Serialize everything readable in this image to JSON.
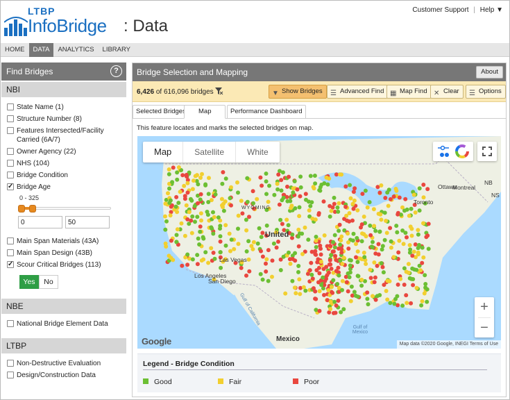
{
  "header": {
    "logo_small": "LTBP",
    "logo_main": "InfoBridge",
    "logo_sub": ": Data",
    "support": "Customer Support",
    "help": "Help ▼"
  },
  "nav": [
    {
      "label": "HOME",
      "active": false
    },
    {
      "label": "DATA",
      "active": true
    },
    {
      "label": "ANALYTICS",
      "active": false
    },
    {
      "label": "LIBRARY",
      "active": false
    }
  ],
  "sidebar": {
    "title": "Find Bridges",
    "sections": {
      "nbi": "NBI",
      "nbe": "NBE",
      "ltbp": "LTBP"
    },
    "nbi_items": [
      {
        "label": "State Name (1)",
        "checked": false
      },
      {
        "label": "Structure Number (8)",
        "checked": false
      },
      {
        "label": "Features Intersected/Facility Carried (6A/7)",
        "checked": false
      },
      {
        "label": "Owner Agency (22)",
        "checked": false
      },
      {
        "label": "NHS (104)",
        "checked": false
      },
      {
        "label": "Bridge Condition",
        "checked": false
      },
      {
        "label": "Bridge Age",
        "checked": true
      }
    ],
    "age_range_label": "0 - 325",
    "age_min": "0",
    "age_max": "50",
    "age_slider_fraction": 0.154,
    "nbi_items2": [
      {
        "label": "Main Span Materials (43A)",
        "checked": false
      },
      {
        "label": "Main Span Design (43B)",
        "checked": false
      },
      {
        "label": "Scour Critical Bridges (113)",
        "checked": true
      }
    ],
    "yes": "Yes",
    "no": "No",
    "nbe_items": [
      {
        "label": "National Bridge Element Data",
        "checked": false
      }
    ],
    "ltbp_items": [
      {
        "label": "Non-Destructive Evaluation",
        "checked": false
      },
      {
        "label": "Design/Construction Data",
        "checked": false
      }
    ]
  },
  "main": {
    "title": "Bridge Selection and Mapping",
    "about": "About",
    "count_selected": "6,426",
    "count_of": "of",
    "count_total": "616,096",
    "count_unit": "bridges",
    "buttons": {
      "show": "Show Bridges",
      "advanced": "Advanced Find",
      "mapfind": "Map Find",
      "clear": "Clear",
      "options": "Options"
    },
    "tabs": [
      "Selected Bridges",
      "Map",
      "Performance Dashboard"
    ],
    "description": "This feature locates and marks the selected bridges on map."
  },
  "map": {
    "types": [
      "Map",
      "Satellite",
      "White"
    ],
    "google": "Google",
    "attribution": "Map data ©2020 Google, INEGI    Terms of Use",
    "labels": {
      "ottawa": "Ottawa",
      "montreal": "Montreal",
      "toronto": "Toronto",
      "nb": "NB",
      "ns": "NS",
      "united": "United",
      "wyoming": "WYOMING",
      "la": "Los Angeles",
      "lasvegas": "Las Vegas",
      "sandiego": "San Diego",
      "gulfcal": "Gulf of California",
      "mexico": "Mexico",
      "gulfmex": "Gulf of Mexico"
    },
    "zoom_in": "+",
    "zoom_out": "−",
    "colors": {
      "water": "#aadaff",
      "land": "#eef0e4",
      "good": "#6cbf33",
      "fair": "#f2cf2f",
      "poor": "#e9473f"
    }
  },
  "legend": {
    "title": "Legend - Bridge Condition",
    "items": [
      {
        "label": "Good",
        "color": "#6cbf33"
      },
      {
        "label": "Fair",
        "color": "#f2cf2f"
      },
      {
        "label": "Poor",
        "color": "#e9473f"
      }
    ]
  }
}
